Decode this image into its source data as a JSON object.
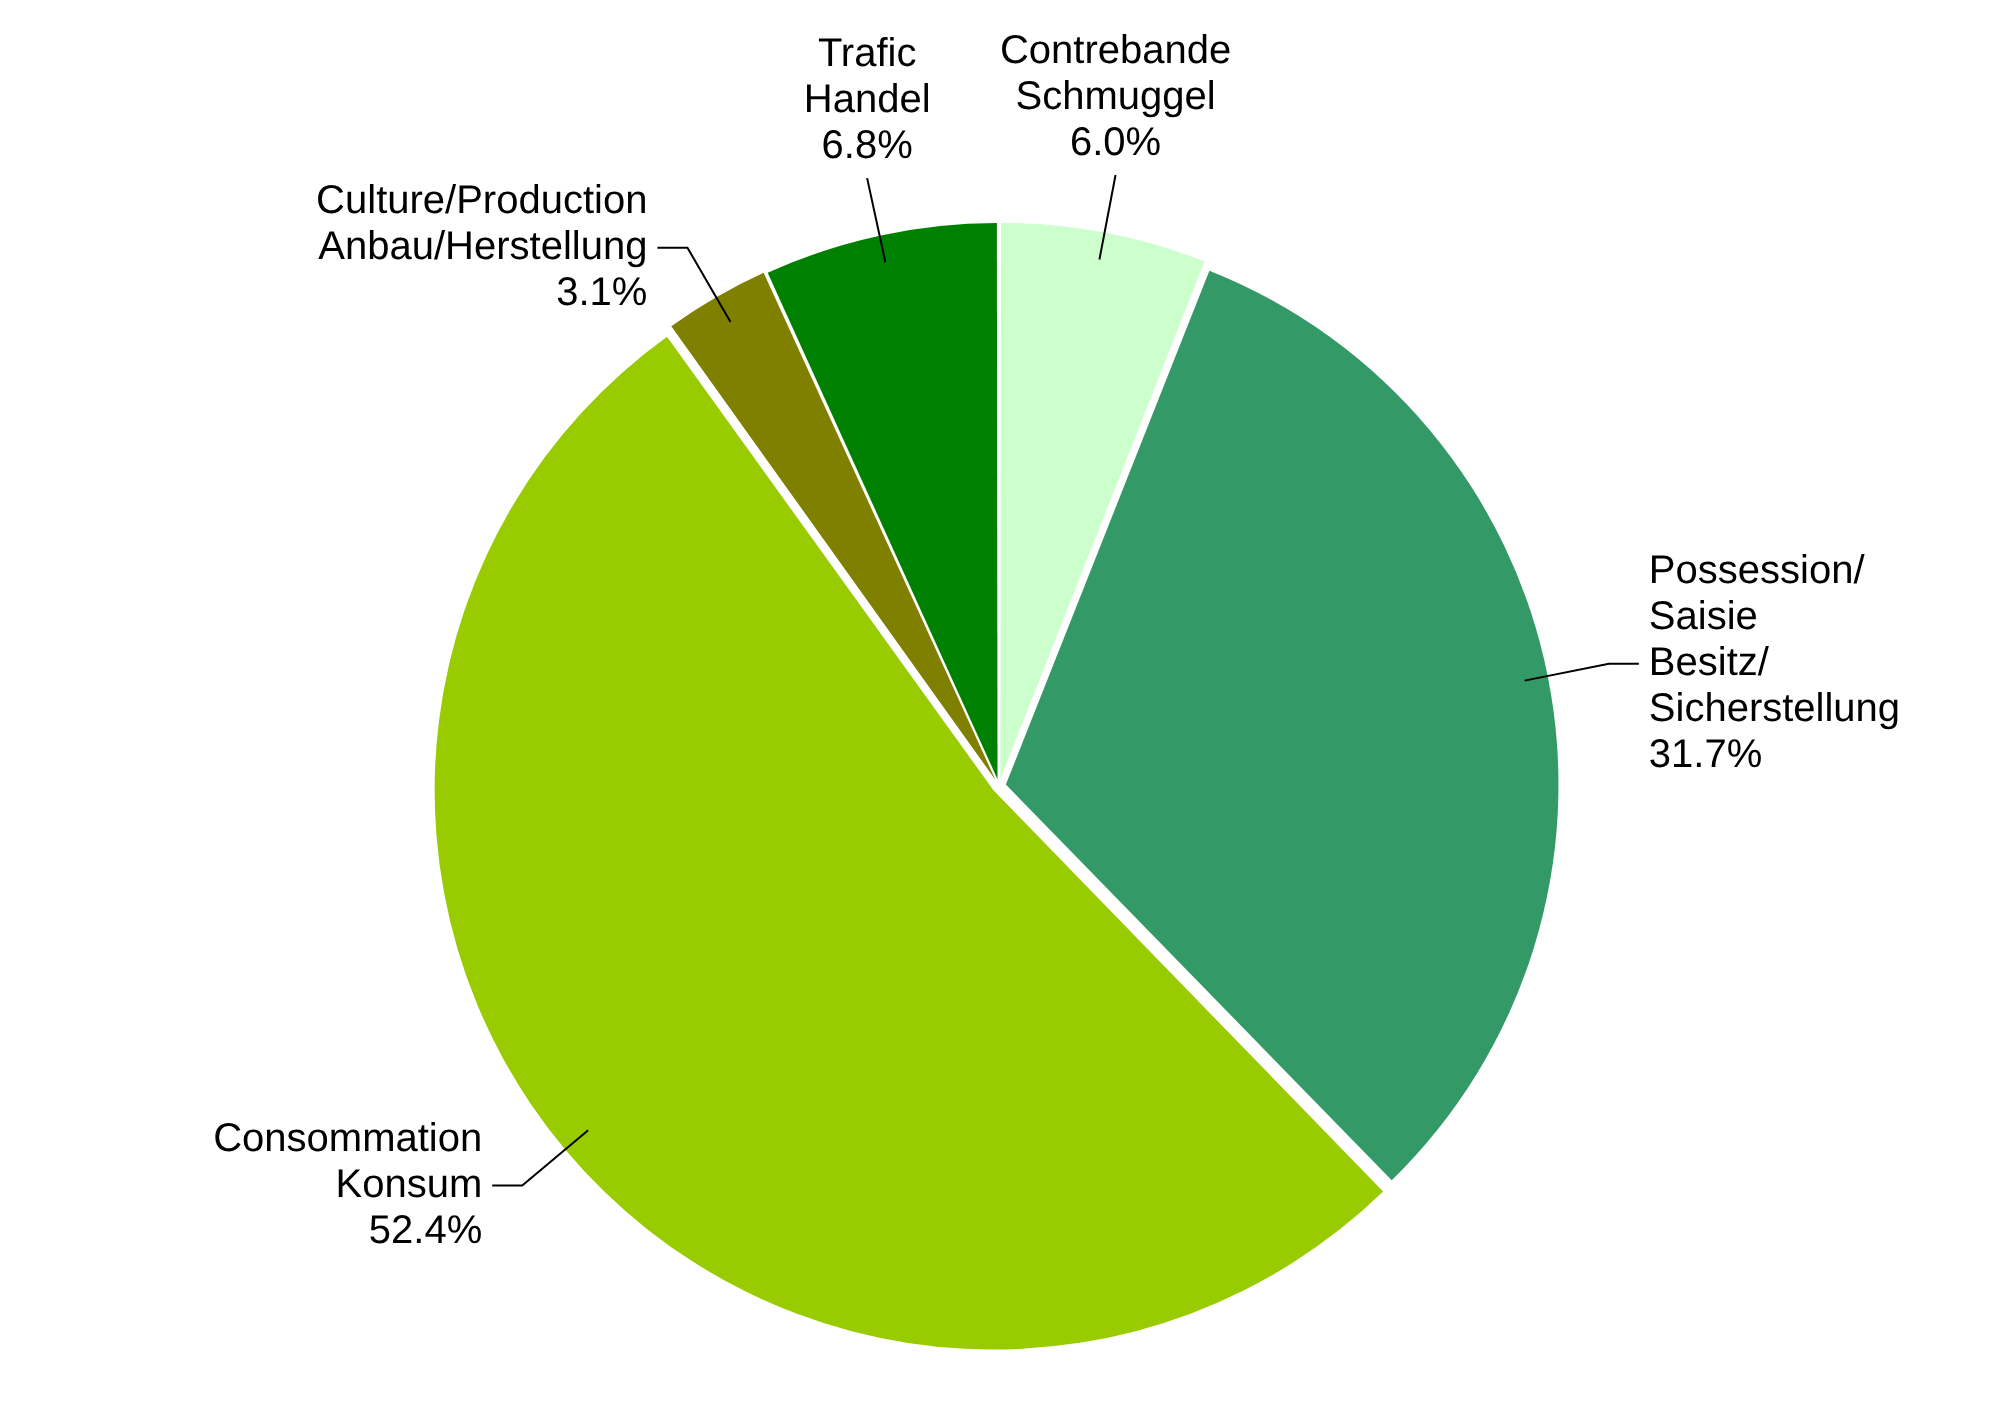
{
  "chart_data": {
    "type": "pie",
    "categories": [
      "Contrebande\nSchmuggel",
      "Possession/\nSaisie\nBesitz/\nSicherstellung",
      "Consommation\nKonsum",
      "Culture/Production\nAnbau/Herstellung",
      "Trafic\nHandel"
    ],
    "values": [
      6.0,
      31.7,
      52.4,
      3.1,
      6.8
    ],
    "value_labels": [
      "6.0%",
      "31.7%",
      "52.4%",
      "3.1%",
      "6.8%"
    ],
    "colors": [
      "#ccffcc",
      "#339966",
      "#99cc00",
      "#808000",
      "#008000"
    ],
    "legend": false
  }
}
